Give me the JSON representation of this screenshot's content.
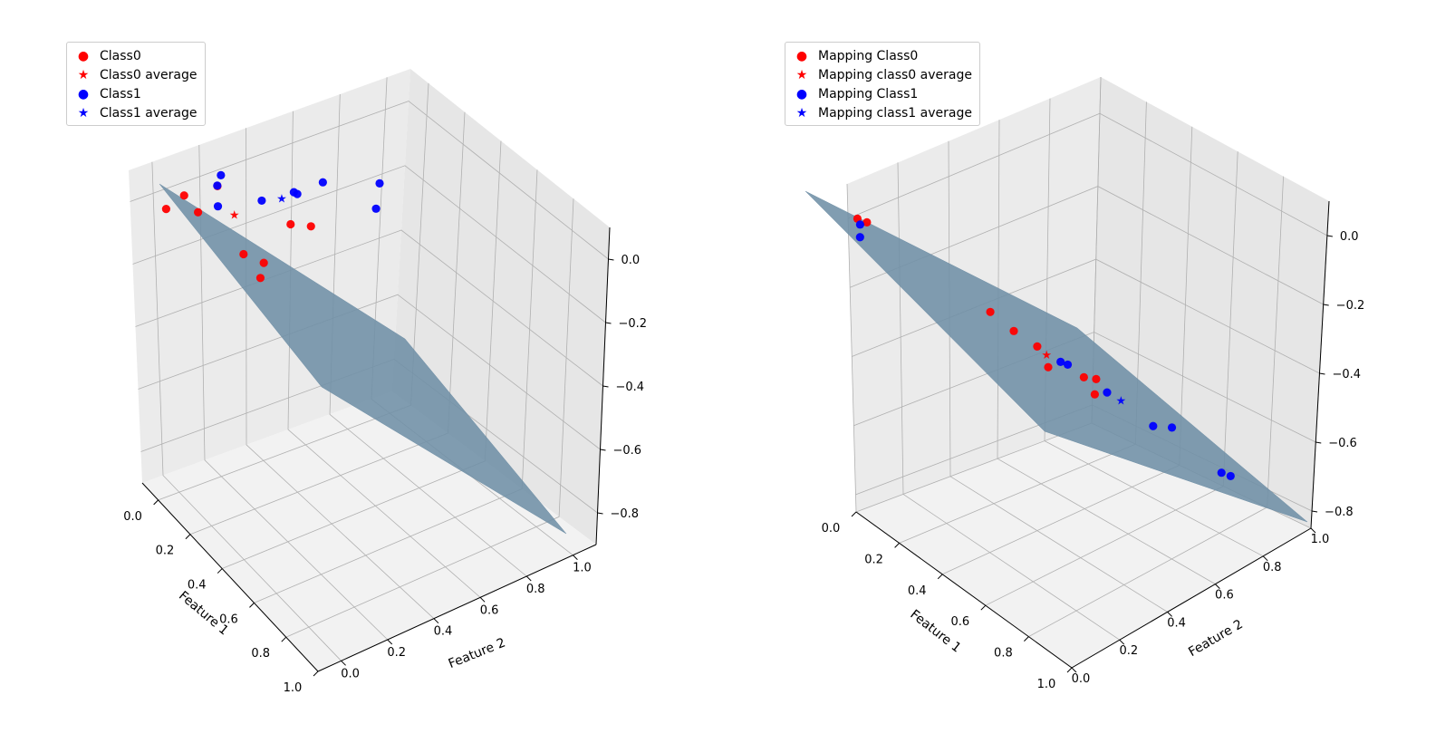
{
  "colors": {
    "class0": "#ff0000",
    "class1": "#0000ff",
    "plane": "#6f8fa6",
    "pane_left": "#ebebeb",
    "pane_right": "#e6e6e6",
    "pane_floor": "#f2f2f2",
    "grid": "#b0b0b0"
  },
  "chart_data": [
    {
      "type": "scatter3d",
      "name": "original-space",
      "xlabel": "Feature 1",
      "ylabel": "Feature 2",
      "zlabel": "",
      "xlim": [
        -0.1,
        1.0
      ],
      "ylim": [
        -0.1,
        1.1
      ],
      "zlim": [
        -0.9,
        0.1
      ],
      "xticks": [
        "0.0",
        "0.2",
        "0.4",
        "0.6",
        "0.8",
        "1.0"
      ],
      "xtick_values": [
        0.0,
        0.2,
        0.4,
        0.6,
        0.8,
        1.0
      ],
      "yticks": [
        "0.0",
        "0.2",
        "0.4",
        "0.6",
        "0.8",
        "1.0"
      ],
      "ytick_values": [
        0.0,
        0.2,
        0.4,
        0.6,
        0.8,
        1.0
      ],
      "zticks": [
        "0.0",
        "−0.2",
        "−0.4",
        "−0.6",
        "−0.8"
      ],
      "ztick_values": [
        0.0,
        -0.2,
        -0.4,
        -0.6,
        -0.8
      ],
      "plane": {
        "z_at_x0_y0": 0.05,
        "z_at_x1_y1": -0.85,
        "label": "decision plane"
      },
      "legend": [
        {
          "label": "Class0",
          "marker": "circle",
          "series": "class0"
        },
        {
          "label": "Class0 average",
          "marker": "star",
          "series": "class0"
        },
        {
          "label": "Class1",
          "marker": "circle",
          "series": "class1"
        },
        {
          "label": "Class1 average",
          "marker": "star",
          "series": "class1"
        }
      ],
      "series": [
        {
          "name": "Class0",
          "color_key": "class0",
          "marker": "circle",
          "points": [
            [
              0.05,
              -0.05,
              0.0
            ],
            [
              0.1,
              0.05,
              -0.02
            ],
            [
              0.12,
              -0.02,
              0.05
            ],
            [
              0.15,
              0.1,
              0.06
            ],
            [
              0.3,
              0.1,
              -0.1
            ],
            [
              0.35,
              0.15,
              -0.12
            ],
            [
              0.4,
              0.1,
              -0.14
            ],
            [
              0.3,
              0.3,
              -0.05
            ],
            [
              0.35,
              0.35,
              -0.05
            ]
          ]
        },
        {
          "name": "Class0 average",
          "color_key": "class0",
          "marker": "star",
          "points": [
            [
              0.22,
              0.12,
              -0.01
            ]
          ]
        },
        {
          "name": "Class1",
          "color_key": "class1",
          "marker": "circle",
          "points": [
            [
              0.15,
              0.1,
              0.0
            ],
            [
              0.12,
              0.12,
              0.05
            ],
            [
              0.1,
              0.15,
              0.07
            ],
            [
              0.2,
              0.25,
              0.0
            ],
            [
              0.25,
              0.35,
              0.02
            ],
            [
              0.28,
              0.45,
              0.04
            ],
            [
              0.45,
              0.55,
              0.0
            ],
            [
              0.4,
              0.6,
              0.05
            ],
            [
              0.2,
              0.4,
              -0.01
            ]
          ]
        },
        {
          "name": "Class1 average",
          "color_key": "class1",
          "marker": "star",
          "points": [
            [
              0.22,
              0.32,
              0.0
            ]
          ]
        }
      ]
    },
    {
      "type": "scatter3d",
      "name": "mapped-space",
      "xlabel": "Feature 1",
      "ylabel": "Feature 2",
      "zlabel": "",
      "xlim": [
        0.0,
        1.0
      ],
      "ylim": [
        0.0,
        1.0
      ],
      "zlim": [
        -0.85,
        0.1
      ],
      "xticks": [
        "0.0",
        "0.2",
        "0.4",
        "0.6",
        "0.8",
        "1.0"
      ],
      "xtick_values": [
        0.0,
        0.2,
        0.4,
        0.6,
        0.8,
        1.0
      ],
      "yticks": [
        "0.0",
        "0.2",
        "0.4",
        "0.6",
        "0.8",
        "1.0"
      ],
      "ytick_values": [
        0.0,
        0.2,
        0.4,
        0.6,
        0.8,
        1.0
      ],
      "zticks": [
        "0.0",
        "−0.2",
        "−0.4",
        "−0.6",
        "−0.8"
      ],
      "ztick_values": [
        0.0,
        -0.2,
        -0.4,
        -0.6,
        -0.8
      ],
      "plane": {
        "z_at_x0_y0": 0.0,
        "z_at_x1_y1": -0.85,
        "label": "decision plane"
      },
      "legend": [
        {
          "label": "Mapping Class0",
          "marker": "circle",
          "series": "class0"
        },
        {
          "label": "Mapping class0 average",
          "marker": "star",
          "series": "class0"
        },
        {
          "label": "Mapping Class1",
          "marker": "circle",
          "series": "class1"
        },
        {
          "label": "Mapping class1 average",
          "marker": "star",
          "series": "class1"
        }
      ],
      "series": [
        {
          "name": "Mapping Class0",
          "color_key": "class0",
          "marker": "circle",
          "points": [
            [
              0.02,
              0.02,
              0.0
            ],
            [
              0.04,
              0.04,
              -0.01
            ],
            [
              0.3,
              0.3,
              -0.25
            ],
            [
              0.35,
              0.35,
              -0.3
            ],
            [
              0.4,
              0.4,
              -0.34
            ],
            [
              0.45,
              0.4,
              -0.38
            ],
            [
              0.5,
              0.5,
              -0.42
            ],
            [
              0.55,
              0.5,
              -0.45
            ],
            [
              0.5,
              0.55,
              -0.44
            ]
          ]
        },
        {
          "name": "Mapping class0 average",
          "color_key": "class0",
          "marker": "star",
          "points": [
            [
              0.42,
              0.42,
              -0.36
            ]
          ]
        },
        {
          "name": "Mapping Class1",
          "color_key": "class1",
          "marker": "circle",
          "points": [
            [
              0.02,
              0.03,
              -0.02
            ],
            [
              0.45,
              0.45,
              -0.38
            ],
            [
              0.46,
              0.47,
              -0.39
            ],
            [
              0.55,
              0.55,
              -0.46
            ],
            [
              0.65,
              0.65,
              -0.55
            ],
            [
              0.68,
              0.7,
              -0.56
            ],
            [
              0.8,
              0.8,
              -0.68
            ],
            [
              0.82,
              0.82,
              -0.69
            ],
            [
              0.03,
              0.02,
              -0.05
            ]
          ]
        },
        {
          "name": "Mapping class1 average",
          "color_key": "class1",
          "marker": "star",
          "points": [
            [
              0.58,
              0.58,
              -0.48
            ]
          ]
        }
      ]
    }
  ]
}
